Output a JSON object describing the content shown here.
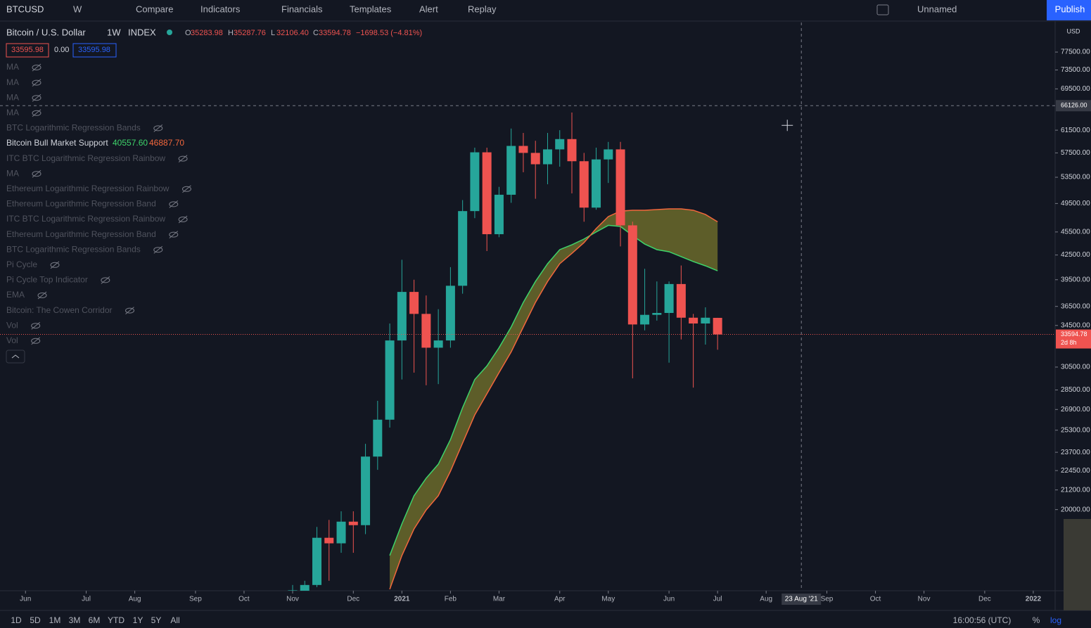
{
  "toolbar": {
    "symbol": "BTCUSD",
    "interval": "W",
    "buttons": [
      "Compare",
      "Indicators",
      "Financials",
      "Templates",
      "Alert",
      "Replay"
    ],
    "layout_name": "Unnamed",
    "publish": "Publish"
  },
  "legend": {
    "title": "Bitcoin / U.S. Dollar",
    "interval": "1W",
    "exchange": "INDEX",
    "ohlc": [
      {
        "label": "O",
        "value": "35283.98"
      },
      {
        "label": "H",
        "value": "35287.76"
      },
      {
        "label": "L",
        "value": "32106.40"
      },
      {
        "label": "C",
        "value": "33594.78"
      }
    ],
    "change": "−1698.53 (−4.81%)",
    "bid": "33595.98",
    "spread": "0.00",
    "ask": "33595.98"
  },
  "indicators": [
    "MA",
    "MA",
    "MA",
    "MA",
    "BTC Logarithmic Regression Bands",
    "ITC BTC Logarithmic Regression Rainbow",
    "MA",
    "Ethereum Logarithmic Regression Rainbow",
    "Ethereum Logarithmic Regression Band",
    "ITC BTC Logarithmic Regression Rainbow",
    "Ethereum Logarithmic Regression Band",
    "BTC Logarithmic Regression Bands",
    "Pi Cycle",
    "Pi Cycle Top Indicator",
    "EMA",
    "Bitcoin: The Cowen Corridor",
    "Vol",
    "Vol"
  ],
  "bottom_bar": {
    "ranges": [
      "1D",
      "5D",
      "1M",
      "3M",
      "6M",
      "YTD",
      "1Y",
      "5Y",
      "All"
    ],
    "clock": "16:00:56 (UTC)",
    "percent": "%",
    "log": "log"
  },
  "chart_data": {
    "type": "candlestick",
    "log_scale": true,
    "currency": "USD",
    "up_color": "#26a69a",
    "down_color": "#ef5350",
    "x": [
      0,
      1,
      2,
      3,
      4,
      5,
      6,
      7,
      8,
      9,
      10,
      11,
      12,
      13,
      14,
      15,
      16,
      17,
      18,
      19,
      20,
      21,
      22,
      23,
      24,
      25,
      26,
      27,
      28,
      29,
      30,
      31,
      32,
      33,
      34,
      35
    ],
    "open": [
      15480,
      15700,
      16000,
      18400,
      18100,
      19300,
      19100,
      23400,
      26100,
      33000,
      38100,
      35700,
      32300,
      33000,
      38800,
      48400,
      57600,
      45200,
      50800,
      58700,
      57500,
      55600,
      58100,
      59900,
      56100,
      48900,
      56400,
      58100,
      46400,
      34600,
      35600,
      35800,
      39000,
      35300,
      34700,
      35283.98
    ],
    "high": [
      16000,
      16200,
      19000,
      19400,
      19900,
      19900,
      24300,
      27600,
      34700,
      41900,
      39500,
      37700,
      36200,
      41000,
      50000,
      58400,
      58400,
      52000,
      61800,
      61000,
      59600,
      61000,
      61500,
      64800,
      57500,
      58400,
      59400,
      59400,
      46900,
      40800,
      39300,
      39300,
      41200,
      35700,
      36400,
      35287.76
    ],
    "low": [
      15200,
      15400,
      15900,
      16200,
      17600,
      17600,
      18600,
      22500,
      25500,
      29400,
      30000,
      28900,
      29000,
      32300,
      37900,
      47400,
      43000,
      44800,
      49600,
      54300,
      50200,
      52400,
      55200,
      51000,
      46900,
      48600,
      52600,
      43600,
      29500,
      34000,
      35000,
      30900,
      33100,
      28700,
      32600,
      32106.4
    ],
    "close": [
      15750,
      16000,
      18400,
      18100,
      19300,
      19100,
      23400,
      26100,
      33000,
      38100,
      35700,
      32300,
      33000,
      38800,
      48400,
      57600,
      45200,
      50800,
      58700,
      57500,
      55600,
      58100,
      59900,
      56100,
      48900,
      56400,
      58100,
      46400,
      34600,
      35600,
      35800,
      39000,
      35300,
      34700,
      35300,
      33594.78
    ],
    "overlay": {
      "name": "Bitcoin Bull Market Support",
      "fill": "#6b6a2a",
      "series": [
        {
          "color": "#3ed36a",
          "last_label": "40557.60",
          "values": [
            null,
            null,
            null,
            null,
            null,
            null,
            null,
            null,
            17460,
            19170,
            20840,
            21950,
            22880,
            24610,
            27050,
            29400,
            30600,
            32300,
            34340,
            36940,
            39300,
            41420,
            43180,
            43810,
            44560,
            45500,
            46400,
            46250,
            45010,
            43900,
            43180,
            42910,
            42290,
            41680,
            41160,
            40557.6
          ]
        },
        {
          "color": "#f2673c",
          "last_label": "46887.70",
          "values": [
            null,
            null,
            null,
            null,
            null,
            null,
            null,
            null,
            15800,
            17460,
            18890,
            19980,
            20840,
            22410,
            24360,
            26470,
            28180,
            30000,
            31900,
            34340,
            36940,
            39300,
            41420,
            42700,
            44090,
            45960,
            47620,
            48400,
            48520,
            48520,
            48620,
            48720,
            48720,
            48520,
            47920,
            46887.7
          ]
        }
      ]
    },
    "xlim": [
      -24.1,
      62.8
    ],
    "ylim": [
      15730,
      84590
    ],
    "xticks": [
      {
        "value": -22,
        "label": "Jun"
      },
      {
        "value": -17,
        "label": "Jul"
      },
      {
        "value": -13,
        "label": "Aug"
      },
      {
        "value": -8,
        "label": "Sep"
      },
      {
        "value": -4,
        "label": "Oct"
      },
      {
        "value": 0,
        "label": "Nov"
      },
      {
        "value": 5,
        "label": "Dec"
      },
      {
        "value": 9,
        "label": "2021"
      },
      {
        "value": 13,
        "label": "Feb"
      },
      {
        "value": 17,
        "label": "Mar"
      },
      {
        "value": 22,
        "label": "Apr"
      },
      {
        "value": 26,
        "label": "May"
      },
      {
        "value": 31,
        "label": "Jun"
      },
      {
        "value": 35,
        "label": "Jul"
      },
      {
        "value": 39,
        "label": "Aug"
      },
      {
        "value": 44,
        "label": "Sep"
      },
      {
        "value": 48,
        "label": "Oct"
      },
      {
        "value": 52,
        "label": "Nov"
      },
      {
        "value": 57,
        "label": "Dec"
      },
      {
        "value": 61,
        "label": "2022"
      }
    ],
    "yticks": [
      {
        "value": 77500,
        "label": "77500.00"
      },
      {
        "value": 73500,
        "label": "73500.00"
      },
      {
        "value": 69500,
        "label": "69500.00"
      },
      {
        "value": 61500,
        "label": "61500.00"
      },
      {
        "value": 57500,
        "label": "57500.00"
      },
      {
        "value": 53500,
        "label": "53500.00"
      },
      {
        "value": 49500,
        "label": "49500.00"
      },
      {
        "value": 45500,
        "label": "45500.00"
      },
      {
        "value": 42500,
        "label": "42500.00"
      },
      {
        "value": 39500,
        "label": "39500.00"
      },
      {
        "value": 36500,
        "label": "36500.00"
      },
      {
        "value": 34500,
        "label": "34500.00"
      },
      {
        "value": 30500,
        "label": "30500.00"
      },
      {
        "value": 28500,
        "label": "28500.00"
      },
      {
        "value": 26900,
        "label": "26900.00"
      },
      {
        "value": 25300,
        "label": "25300.00"
      },
      {
        "value": 23700,
        "label": "23700.00"
      },
      {
        "value": 22450,
        "label": "22450.00"
      },
      {
        "value": 21200,
        "label": "21200.00"
      },
      {
        "value": 20000,
        "label": "20000.00"
      }
    ],
    "last_price": {
      "value": 33594.78,
      "label": "33594.78",
      "countdown": "2d 8h"
    },
    "crosshair": {
      "x": {
        "value": 41.9,
        "label": "23 Aug '21"
      },
      "y": {
        "value": 66126,
        "label": "66126.00"
      }
    }
  }
}
